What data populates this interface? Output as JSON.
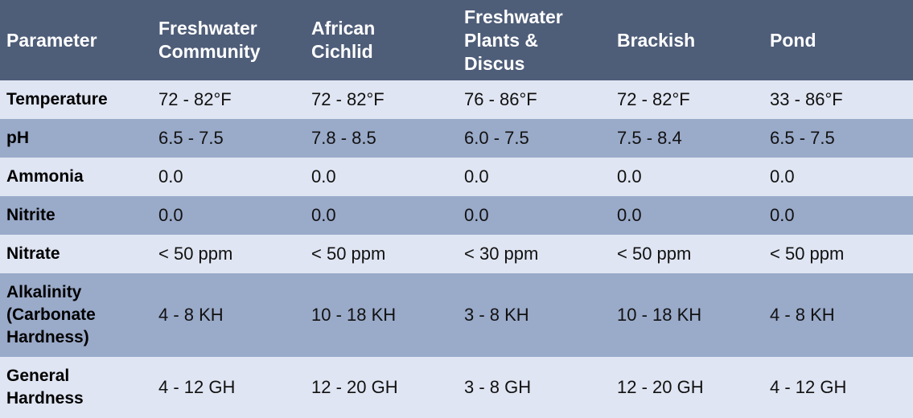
{
  "colors": {
    "header_background": "#4e5d78",
    "light_row": "#dfe5f2",
    "dark_row": "#9aaac9"
  },
  "table": {
    "headers": [
      "Parameter",
      "Freshwater\nCommunity",
      "African\nCichlid",
      "Freshwater\nPlants &\nDiscus",
      "Brackish",
      "Pond"
    ],
    "rows": [
      {
        "param": "Temperature",
        "values": [
          "72 - 82°F",
          "72 - 82°F",
          "76 - 86°F",
          "72 - 82°F",
          "33 - 86°F"
        ]
      },
      {
        "param": "pH",
        "values": [
          "6.5 - 7.5",
          "7.8 - 8.5",
          "6.0 - 7.5",
          "7.5 - 8.4",
          "6.5 - 7.5"
        ]
      },
      {
        "param": "Ammonia",
        "values": [
          "0.0",
          "0.0",
          "0.0",
          "0.0",
          "0.0"
        ]
      },
      {
        "param": "Nitrite",
        "values": [
          "0.0",
          "0.0",
          "0.0",
          "0.0",
          "0.0"
        ]
      },
      {
        "param": "Nitrate",
        "values": [
          "< 50 ppm",
          "< 50 ppm",
          "< 30 ppm",
          "< 50 ppm",
          "< 50 ppm"
        ]
      },
      {
        "param": "Alkalinity\n(Carbonate\nHardness)",
        "values": [
          "4 - 8 KH",
          "10 - 18 KH",
          "3 - 8 KH",
          "10 - 18 KH",
          "4 - 8 KH"
        ]
      },
      {
        "param": "General\nHardness",
        "values": [
          "4 - 12 GH",
          "12 - 20 GH",
          "3 - 8 GH",
          "12 - 20 GH",
          "4 - 12 GH"
        ]
      }
    ]
  }
}
